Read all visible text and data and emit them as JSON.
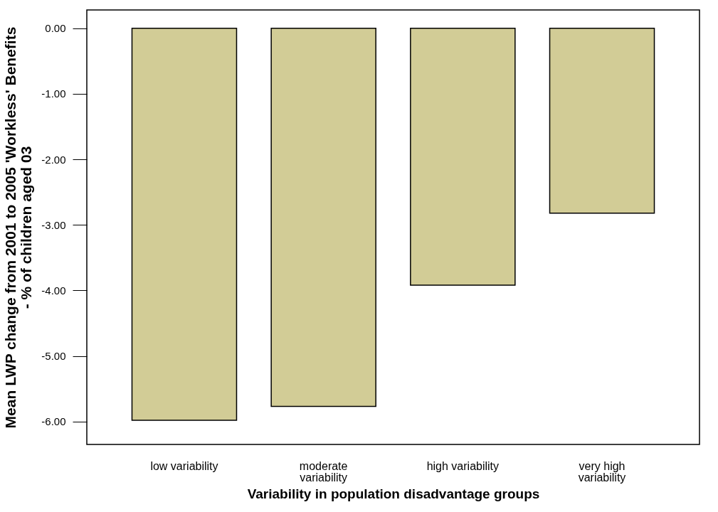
{
  "chart_data": {
    "type": "bar",
    "xlabel": "Variability in population disadvantage groups",
    "ylabel": [
      "Mean LWP change from 2001 to 2005 'Workless' Benefits",
      "- % of children aged 03"
    ],
    "categories": [
      "low variability",
      "moderate variability",
      "high variability",
      "very high variability"
    ],
    "values": [
      -5.98,
      -5.77,
      -3.92,
      -2.82
    ],
    "color": "#d2cc96",
    "ylim": [
      -6.35,
      0.28
    ],
    "yticks": [
      {
        "value": 0,
        "label": "0.00"
      },
      {
        "value": -1,
        "label": "-1.00"
      },
      {
        "value": -2,
        "label": "-2.00"
      },
      {
        "value": -3,
        "label": "-3.00"
      },
      {
        "value": -4,
        "label": "-4.00"
      },
      {
        "value": -5,
        "label": "-5.00"
      },
      {
        "value": -6,
        "label": "-6.00"
      }
    ],
    "grid": false
  }
}
